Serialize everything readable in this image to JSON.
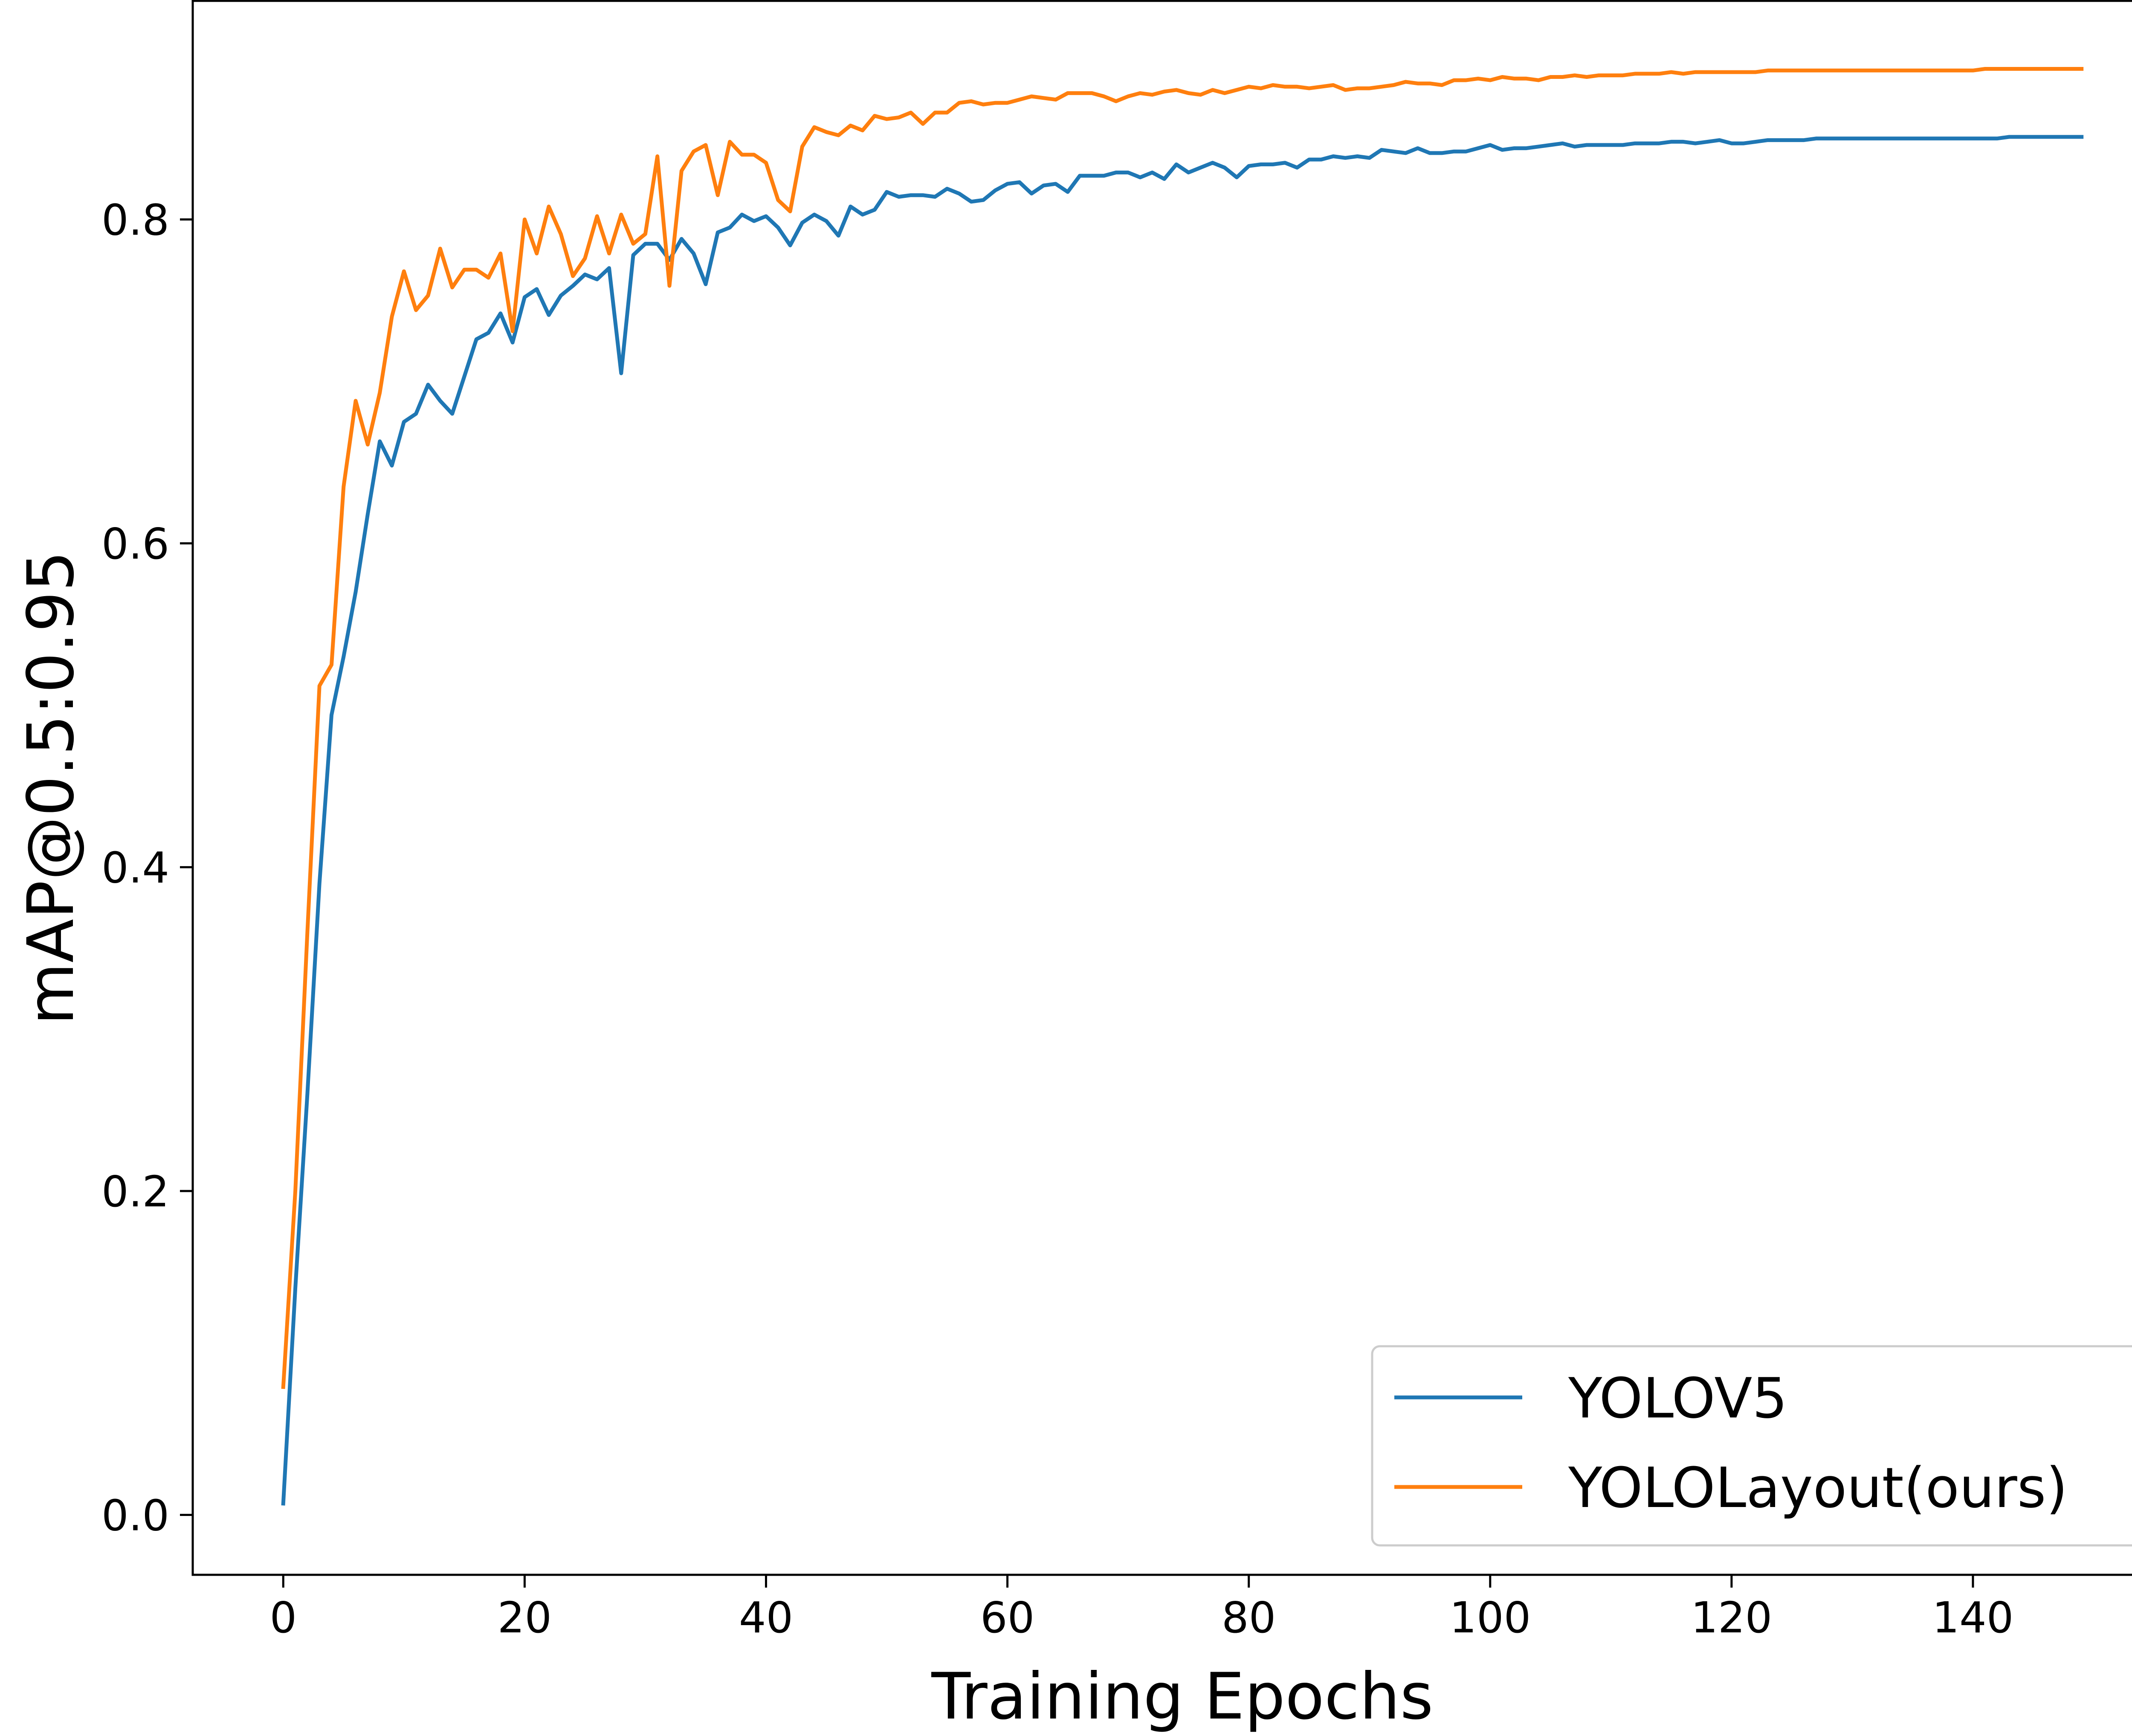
{
  "chart_data": {
    "type": "line",
    "xlabel": "Training Epochs",
    "ylabel": "mAP@0.5:0.95",
    "xlim": [
      -7.5,
      156.5
    ],
    "ylim": [
      -0.037,
      0.935
    ],
    "xticks": [
      0,
      20,
      40,
      60,
      80,
      100,
      120,
      140
    ],
    "xtick_labels": [
      "0",
      "20",
      "40",
      "60",
      "80",
      "100",
      "120",
      "140"
    ],
    "yticks": [
      0.0,
      0.2,
      0.4,
      0.6,
      0.8
    ],
    "ytick_labels": [
      "0.0",
      "0.2",
      "0.4",
      "0.6",
      "0.8"
    ],
    "grid": false,
    "legend_position": "bottom-right",
    "series": [
      {
        "name": "YOLOV5",
        "color": "#1f77b4",
        "x": [
          0,
          1,
          2,
          3,
          4,
          5,
          6,
          7,
          8,
          9,
          10,
          11,
          12,
          13,
          14,
          15,
          16,
          17,
          18,
          19,
          20,
          21,
          22,
          23,
          24,
          25,
          26,
          27,
          28,
          29,
          30,
          31,
          32,
          33,
          34,
          35,
          36,
          37,
          38,
          39,
          40,
          41,
          42,
          43,
          44,
          45,
          46,
          47,
          48,
          49,
          50,
          51,
          52,
          53,
          54,
          55,
          56,
          57,
          58,
          59,
          60,
          61,
          62,
          63,
          64,
          65,
          66,
          67,
          68,
          69,
          70,
          71,
          72,
          73,
          74,
          75,
          76,
          77,
          78,
          79,
          80,
          81,
          82,
          83,
          84,
          85,
          86,
          87,
          88,
          89,
          90,
          91,
          92,
          93,
          94,
          95,
          96,
          97,
          98,
          99,
          100,
          101,
          102,
          103,
          104,
          105,
          106,
          107,
          108,
          109,
          110,
          111,
          112,
          113,
          114,
          115,
          116,
          117,
          118,
          119,
          120,
          121,
          122,
          123,
          124,
          125,
          126,
          127,
          128,
          129,
          130,
          131,
          132,
          133,
          134,
          135,
          136,
          137,
          138,
          139,
          140,
          141,
          142,
          143,
          144,
          145,
          146,
          147,
          148,
          149
        ],
        "y": [
          0.007,
          0.14,
          0.26,
          0.39,
          0.494,
          0.53,
          0.57,
          0.618,
          0.663,
          0.648,
          0.675,
          0.68,
          0.698,
          0.688,
          0.68,
          0.703,
          0.726,
          0.73,
          0.742,
          0.724,
          0.752,
          0.757,
          0.741,
          0.753,
          0.759,
          0.766,
          0.763,
          0.77,
          0.705,
          0.778,
          0.785,
          0.785,
          0.775,
          0.788,
          0.779,
          0.76,
          0.792,
          0.795,
          0.803,
          0.799,
          0.802,
          0.795,
          0.784,
          0.798,
          0.803,
          0.799,
          0.79,
          0.808,
          0.803,
          0.806,
          0.817,
          0.814,
          0.815,
          0.815,
          0.814,
          0.819,
          0.816,
          0.811,
          0.812,
          0.818,
          0.822,
          0.823,
          0.816,
          0.821,
          0.822,
          0.817,
          0.827,
          0.827,
          0.827,
          0.829,
          0.829,
          0.826,
          0.829,
          0.825,
          0.834,
          0.829,
          0.832,
          0.835,
          0.832,
          0.826,
          0.833,
          0.834,
          0.834,
          0.835,
          0.832,
          0.837,
          0.837,
          0.839,
          0.838,
          0.839,
          0.838,
          0.843,
          0.842,
          0.841,
          0.844,
          0.841,
          0.841,
          0.842,
          0.842,
          0.844,
          0.846,
          0.843,
          0.844,
          0.844,
          0.845,
          0.846,
          0.847,
          0.845,
          0.846,
          0.846,
          0.846,
          0.846,
          0.847,
          0.847,
          0.847,
          0.848,
          0.848,
          0.847,
          0.848,
          0.849,
          0.847,
          0.847,
          0.848,
          0.849,
          0.849,
          0.849,
          0.849,
          0.85,
          0.85,
          0.85,
          0.85,
          0.85,
          0.85,
          0.85,
          0.85,
          0.85,
          0.85,
          0.85,
          0.85,
          0.85,
          0.85,
          0.85,
          0.85,
          0.851,
          0.851,
          0.851,
          0.851,
          0.851,
          0.851,
          0.851
        ]
      },
      {
        "name": "YOLOLayout(ours)",
        "color": "#ff7f0e",
        "x": [
          0,
          1,
          2,
          3,
          4,
          5,
          6,
          7,
          8,
          9,
          10,
          11,
          12,
          13,
          14,
          15,
          16,
          17,
          18,
          19,
          20,
          21,
          22,
          23,
          24,
          25,
          26,
          27,
          28,
          29,
          30,
          31,
          32,
          33,
          34,
          35,
          36,
          37,
          38,
          39,
          40,
          41,
          42,
          43,
          44,
          45,
          46,
          47,
          48,
          49,
          50,
          51,
          52,
          53,
          54,
          55,
          56,
          57,
          58,
          59,
          60,
          61,
          62,
          63,
          64,
          65,
          66,
          67,
          68,
          69,
          70,
          71,
          72,
          73,
          74,
          75,
          76,
          77,
          78,
          79,
          80,
          81,
          82,
          83,
          84,
          85,
          86,
          87,
          88,
          89,
          90,
          91,
          92,
          93,
          94,
          95,
          96,
          97,
          98,
          99,
          100,
          101,
          102,
          103,
          104,
          105,
          106,
          107,
          108,
          109,
          110,
          111,
          112,
          113,
          114,
          115,
          116,
          117,
          118,
          119,
          120,
          121,
          122,
          123,
          124,
          125,
          126,
          127,
          128,
          129,
          130,
          131,
          132,
          133,
          134,
          135,
          136,
          137,
          138,
          139,
          140,
          141,
          142,
          143,
          144,
          145,
          146,
          147,
          148,
          149
        ],
        "y": [
          0.079,
          0.2,
          0.36,
          0.512,
          0.525,
          0.635,
          0.688,
          0.661,
          0.693,
          0.74,
          0.768,
          0.744,
          0.753,
          0.782,
          0.758,
          0.769,
          0.769,
          0.764,
          0.779,
          0.731,
          0.8,
          0.779,
          0.808,
          0.791,
          0.765,
          0.776,
          0.802,
          0.779,
          0.803,
          0.785,
          0.791,
          0.839,
          0.759,
          0.83,
          0.842,
          0.846,
          0.815,
          0.848,
          0.84,
          0.84,
          0.835,
          0.812,
          0.805,
          0.845,
          0.857,
          0.854,
          0.852,
          0.858,
          0.855,
          0.864,
          0.862,
          0.863,
          0.866,
          0.859,
          0.866,
          0.866,
          0.872,
          0.873,
          0.871,
          0.872,
          0.872,
          0.874,
          0.876,
          0.875,
          0.874,
          0.878,
          0.878,
          0.878,
          0.876,
          0.873,
          0.876,
          0.878,
          0.877,
          0.879,
          0.88,
          0.878,
          0.877,
          0.88,
          0.878,
          0.88,
          0.882,
          0.881,
          0.883,
          0.882,
          0.882,
          0.881,
          0.882,
          0.883,
          0.88,
          0.881,
          0.881,
          0.882,
          0.883,
          0.885,
          0.884,
          0.884,
          0.883,
          0.886,
          0.886,
          0.887,
          0.886,
          0.888,
          0.887,
          0.887,
          0.886,
          0.888,
          0.888,
          0.889,
          0.888,
          0.889,
          0.889,
          0.889,
          0.89,
          0.89,
          0.89,
          0.891,
          0.89,
          0.891,
          0.891,
          0.891,
          0.891,
          0.891,
          0.891,
          0.892,
          0.892,
          0.892,
          0.892,
          0.892,
          0.892,
          0.892,
          0.892,
          0.892,
          0.892,
          0.892,
          0.892,
          0.892,
          0.892,
          0.892,
          0.892,
          0.892,
          0.892,
          0.893,
          0.893,
          0.893,
          0.893,
          0.893,
          0.893,
          0.893,
          0.893,
          0.893
        ]
      }
    ]
  }
}
